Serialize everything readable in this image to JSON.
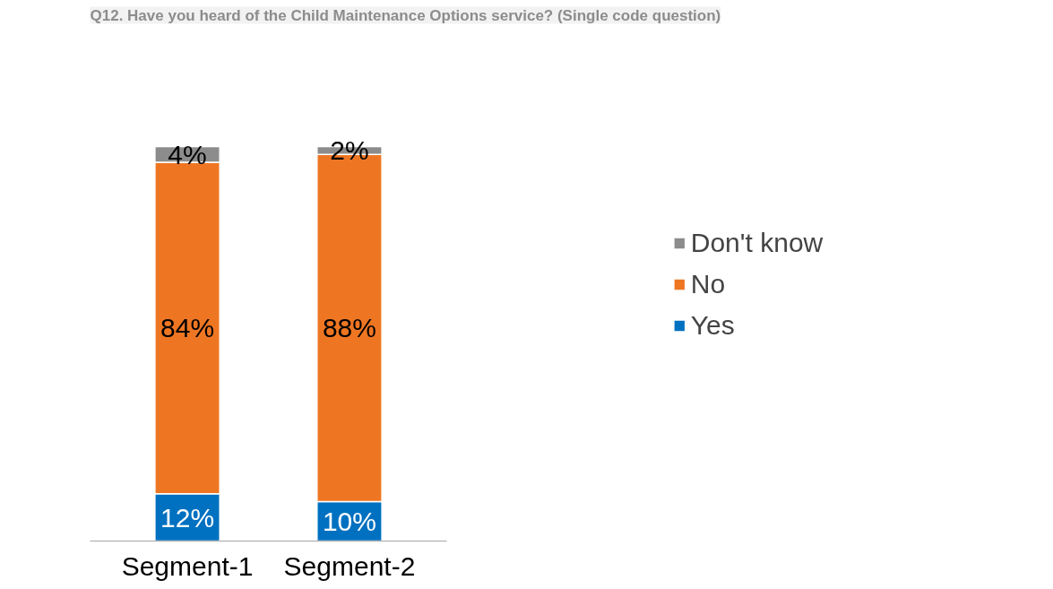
{
  "chart_data": {
    "type": "bar",
    "title": "Q12. Have you heard of the Child Maintenance Options service? (Single code question)",
    "categories": [
      "Segment-1",
      "Segment-2"
    ],
    "stacked": true,
    "legend": "right",
    "series": [
      {
        "name": "Yes",
        "color": "#0070c0",
        "values": [
          12,
          10
        ],
        "value_labels": [
          "12%",
          "10%"
        ]
      },
      {
        "name": "No",
        "color": "#ee7623",
        "values": [
          84,
          88
        ],
        "value_labels": [
          "84%",
          "88%"
        ]
      },
      {
        "name": "Don't know",
        "color": "#8c8c8c",
        "values": [
          4,
          2
        ],
        "value_labels": [
          "4%",
          "2%"
        ]
      }
    ]
  }
}
